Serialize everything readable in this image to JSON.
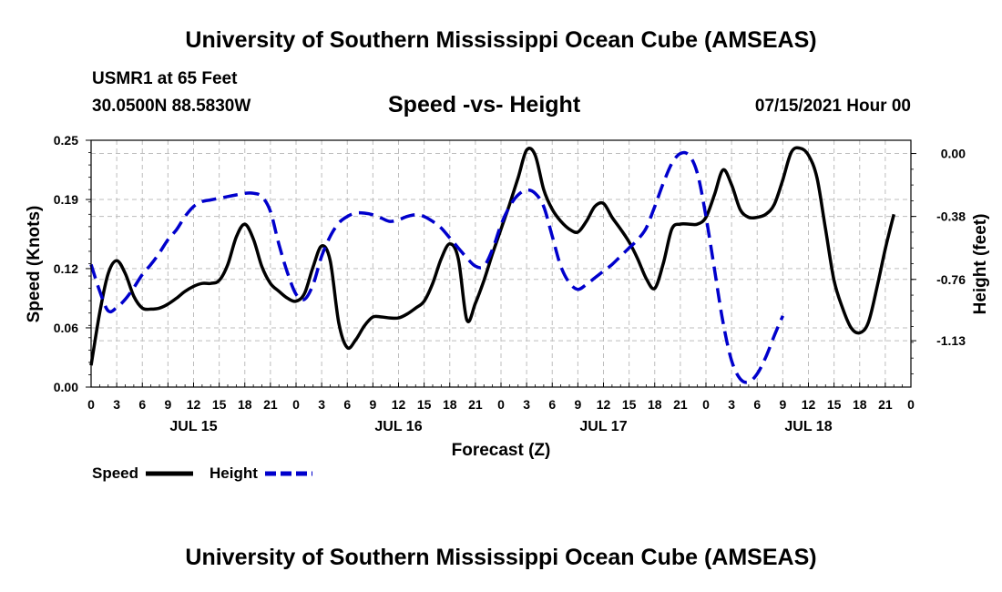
{
  "header": {
    "title": "University of Southern Mississippi Ocean Cube (AMSEAS)",
    "station": "USMR1 at 65 Feet",
    "coords": "30.0500N  88.5830W",
    "chart_title": "Speed -vs- Height",
    "run_date": "07/15/2021 Hour 00"
  },
  "footer": {
    "title": "University of Southern Mississippi Ocean Cube (AMSEAS)"
  },
  "chart_data": {
    "type": "line",
    "title": "Speed -vs- Height",
    "xlabel": "Forecast (Z)",
    "ylabel": "Speed (Knots)",
    "y2label": "Height (feet)",
    "xlim": [
      0,
      96
    ],
    "ylim": [
      0,
      0.25
    ],
    "y2lim": [
      -1.41,
      0.08
    ],
    "grid": true,
    "x_tick_labels": [
      "0",
      "3",
      "6",
      "9",
      "12",
      "15",
      "18",
      "21",
      "0",
      "3",
      "6",
      "9",
      "12",
      "15",
      "18",
      "21",
      "0",
      "3",
      "6",
      "9",
      "12",
      "15",
      "18",
      "21",
      "0",
      "3",
      "6",
      "9",
      "12",
      "15",
      "18",
      "21",
      "0"
    ],
    "day_labels": [
      {
        "label": "JUL 15",
        "hour": 12
      },
      {
        "label": "JUL 16",
        "hour": 36
      },
      {
        "label": "JUL 17",
        "hour": 60
      },
      {
        "label": "JUL 18",
        "hour": 84
      }
    ],
    "y_ticks": [
      0.0,
      0.06,
      0.12,
      0.19,
      0.25
    ],
    "y_tick_labels": [
      "0.00",
      "0.06",
      "0.12",
      "0.19",
      "0.25"
    ],
    "y2_ticks": [
      0.0,
      -0.38,
      -0.76,
      -1.13
    ],
    "y2_tick_labels": [
      "0.00",
      "-0.38",
      "-0.76",
      "-1.13"
    ],
    "legend": [
      {
        "name": "Speed",
        "color": "#000000",
        "dashed": false
      },
      {
        "name": "Height",
        "color": "#0000cc",
        "dashed": true
      }
    ],
    "series": [
      {
        "name": "Speed",
        "axis": "left",
        "color": "#000000",
        "points": [
          [
            0,
            0.022
          ],
          [
            1,
            0.075
          ],
          [
            2,
            0.115
          ],
          [
            3,
            0.128
          ],
          [
            4,
            0.115
          ],
          [
            5,
            0.092
          ],
          [
            6,
            0.08
          ],
          [
            7,
            0.079
          ],
          [
            8,
            0.08
          ],
          [
            9,
            0.084
          ],
          [
            10,
            0.09
          ],
          [
            11,
            0.097
          ],
          [
            12,
            0.102
          ],
          [
            13,
            0.105
          ],
          [
            14,
            0.105
          ],
          [
            15,
            0.108
          ],
          [
            16,
            0.124
          ],
          [
            17,
            0.152
          ],
          [
            18,
            0.165
          ],
          [
            19,
            0.15
          ],
          [
            20,
            0.122
          ],
          [
            21,
            0.105
          ],
          [
            22,
            0.097
          ],
          [
            23,
            0.09
          ],
          [
            24,
            0.087
          ],
          [
            25,
            0.095
          ],
          [
            26,
            0.122
          ],
          [
            27,
            0.143
          ],
          [
            28,
            0.128
          ],
          [
            29,
            0.065
          ],
          [
            30,
            0.04
          ],
          [
            31,
            0.048
          ],
          [
            32,
            0.062
          ],
          [
            33,
            0.071
          ],
          [
            34,
            0.071
          ],
          [
            35,
            0.07
          ],
          [
            36,
            0.07
          ],
          [
            37,
            0.074
          ],
          [
            38,
            0.08
          ],
          [
            39,
            0.087
          ],
          [
            40,
            0.105
          ],
          [
            41,
            0.13
          ],
          [
            42,
            0.145
          ],
          [
            43,
            0.13
          ],
          [
            44,
            0.068
          ],
          [
            45,
            0.085
          ],
          [
            46,
            0.108
          ],
          [
            47,
            0.135
          ],
          [
            48,
            0.16
          ],
          [
            49,
            0.185
          ],
          [
            50,
            0.212
          ],
          [
            51,
            0.24
          ],
          [
            52,
            0.235
          ],
          [
            53,
            0.2
          ],
          [
            54,
            0.18
          ],
          [
            55,
            0.168
          ],
          [
            56,
            0.16
          ],
          [
            57,
            0.157
          ],
          [
            58,
            0.168
          ],
          [
            59,
            0.183
          ],
          [
            60,
            0.186
          ],
          [
            61,
            0.172
          ],
          [
            62,
            0.16
          ],
          [
            63,
            0.147
          ],
          [
            64,
            0.13
          ],
          [
            65,
            0.11
          ],
          [
            66,
            0.1
          ],
          [
            67,
            0.125
          ],
          [
            68,
            0.16
          ],
          [
            69,
            0.165
          ],
          [
            70,
            0.165
          ],
          [
            71,
            0.165
          ],
          [
            72,
            0.172
          ],
          [
            73,
            0.195
          ],
          [
            74,
            0.22
          ],
          [
            75,
            0.205
          ],
          [
            76,
            0.18
          ],
          [
            77,
            0.172
          ],
          [
            78,
            0.172
          ],
          [
            79,
            0.175
          ],
          [
            80,
            0.185
          ],
          [
            81,
            0.21
          ],
          [
            82,
            0.238
          ],
          [
            83,
            0.242
          ],
          [
            84,
            0.235
          ],
          [
            85,
            0.212
          ],
          [
            86,
            0.16
          ],
          [
            87,
            0.108
          ],
          [
            88,
            0.08
          ],
          [
            89,
            0.06
          ],
          [
            90,
            0.055
          ],
          [
            91,
            0.065
          ],
          [
            92,
            0.1
          ],
          [
            93,
            0.14
          ],
          [
            94,
            0.175
          ]
        ]
      },
      {
        "name": "Height",
        "axis": "right",
        "color": "#0000cc",
        "points": [
          [
            0,
            -0.67
          ],
          [
            1,
            -0.83
          ],
          [
            2,
            -0.95
          ],
          [
            3,
            -0.93
          ],
          [
            4,
            -0.88
          ],
          [
            5,
            -0.81
          ],
          [
            6,
            -0.73
          ],
          [
            7,
            -0.67
          ],
          [
            8,
            -0.6
          ],
          [
            9,
            -0.52
          ],
          [
            10,
            -0.46
          ],
          [
            11,
            -0.38
          ],
          [
            12,
            -0.32
          ],
          [
            13,
            -0.29
          ],
          [
            14,
            -0.28
          ],
          [
            15,
            -0.27
          ],
          [
            16,
            -0.26
          ],
          [
            17,
            -0.25
          ],
          [
            18,
            -0.24
          ],
          [
            19,
            -0.24
          ],
          [
            20,
            -0.26
          ],
          [
            21,
            -0.35
          ],
          [
            22,
            -0.55
          ],
          [
            23,
            -0.72
          ],
          [
            24,
            -0.85
          ],
          [
            25,
            -0.88
          ],
          [
            26,
            -0.79
          ],
          [
            27,
            -0.62
          ],
          [
            28,
            -0.5
          ],
          [
            29,
            -0.42
          ],
          [
            30,
            -0.38
          ],
          [
            31,
            -0.36
          ],
          [
            32,
            -0.36
          ],
          [
            33,
            -0.37
          ],
          [
            34,
            -0.39
          ],
          [
            35,
            -0.41
          ],
          [
            36,
            -0.4
          ],
          [
            37,
            -0.38
          ],
          [
            38,
            -0.37
          ],
          [
            39,
            -0.38
          ],
          [
            40,
            -0.41
          ],
          [
            41,
            -0.45
          ],
          [
            42,
            -0.51
          ],
          [
            43,
            -0.57
          ],
          [
            44,
            -0.63
          ],
          [
            45,
            -0.68
          ],
          [
            46,
            -0.68
          ],
          [
            47,
            -0.58
          ],
          [
            48,
            -0.43
          ],
          [
            49,
            -0.32
          ],
          [
            50,
            -0.25
          ],
          [
            51,
            -0.22
          ],
          [
            52,
            -0.24
          ],
          [
            53,
            -0.32
          ],
          [
            54,
            -0.5
          ],
          [
            55,
            -0.68
          ],
          [
            56,
            -0.78
          ],
          [
            57,
            -0.82
          ],
          [
            58,
            -0.79
          ],
          [
            59,
            -0.75
          ],
          [
            60,
            -0.71
          ],
          [
            61,
            -0.67
          ],
          [
            62,
            -0.62
          ],
          [
            63,
            -0.57
          ],
          [
            64,
            -0.52
          ],
          [
            65,
            -0.45
          ],
          [
            66,
            -0.32
          ],
          [
            67,
            -0.18
          ],
          [
            68,
            -0.06
          ],
          [
            69,
            0.0
          ],
          [
            70,
            -0.01
          ],
          [
            71,
            -0.12
          ],
          [
            72,
            -0.38
          ],
          [
            73,
            -0.7
          ],
          [
            74,
            -1.02
          ],
          [
            75,
            -1.25
          ],
          [
            76,
            -1.36
          ],
          [
            77,
            -1.38
          ],
          [
            78,
            -1.33
          ],
          [
            79,
            -1.23
          ],
          [
            80,
            -1.1
          ],
          [
            81,
            -0.98
          ]
        ]
      }
    ]
  }
}
